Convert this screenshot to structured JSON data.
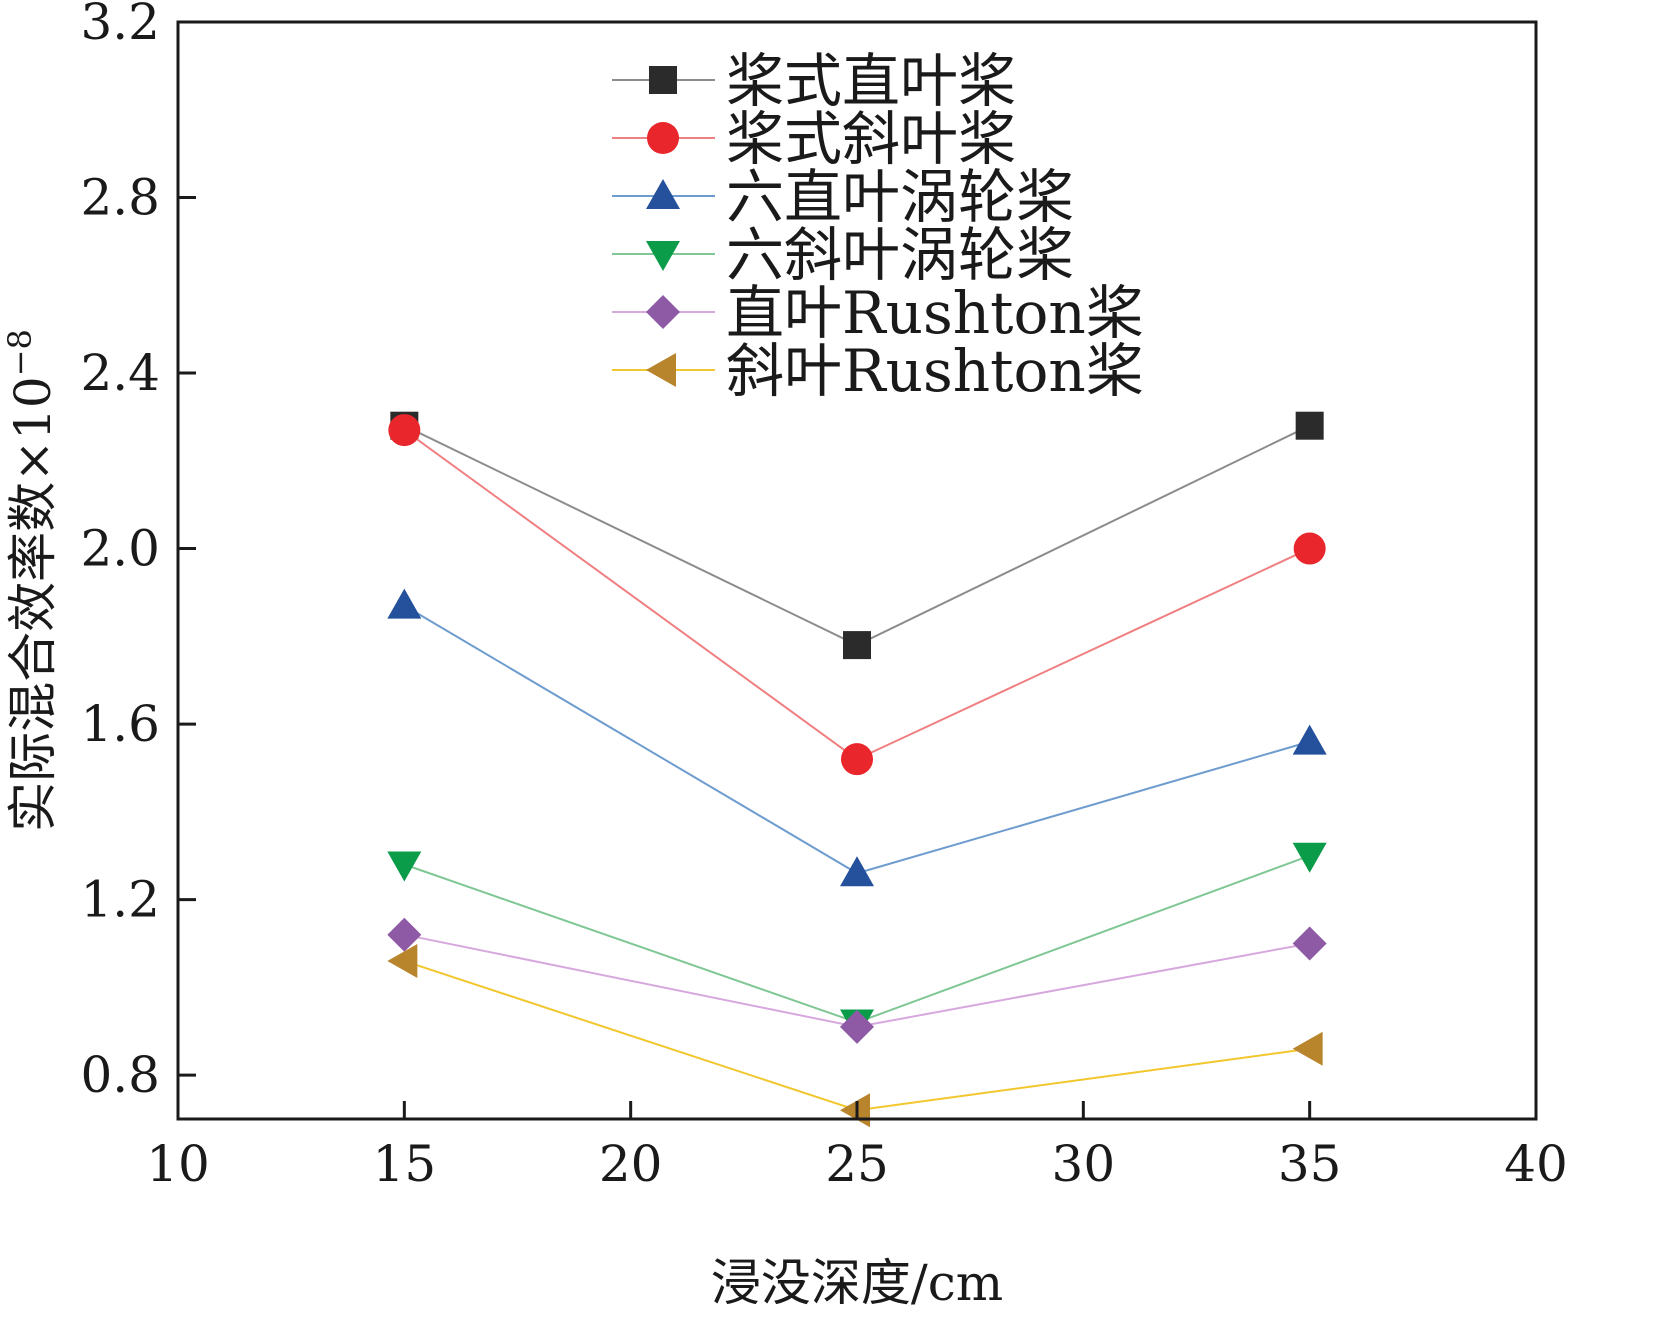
{
  "chart_data": {
    "type": "line",
    "xlabel": "浸没深度/cm",
    "ylabel": "实际混合效率数×10",
    "ylabel_exponent": "−8",
    "xlim": [
      10,
      40
    ],
    "ylim": [
      0.7,
      3.2
    ],
    "xticks": [
      10,
      15,
      20,
      25,
      30,
      35,
      40
    ],
    "xtick_labels": [
      "10",
      "15",
      "20",
      "25",
      "30",
      "35",
      "40"
    ],
    "yticks": [
      0.8,
      1.2,
      1.6,
      2.0,
      2.4,
      2.8,
      3.2
    ],
    "ytick_labels": [
      "0.8",
      "1.2",
      "1.6",
      "2.0",
      "2.4",
      "2.8",
      "3.2"
    ],
    "grid": false,
    "legend_position": "top-center",
    "x": [
      15,
      25,
      35
    ],
    "series": [
      {
        "name": "桨式直叶桨",
        "values": [
          2.28,
          1.78,
          2.28
        ],
        "color": "#2b2b2b",
        "line_color": "#8c8c8c",
        "marker": "square"
      },
      {
        "name": "桨式斜叶桨",
        "values": [
          2.27,
          1.52,
          2.0
        ],
        "color": "#e8262b",
        "line_color": "#f07f82",
        "marker": "circle"
      },
      {
        "name": "六直叶涡轮桨",
        "values": [
          1.87,
          1.26,
          1.56
        ],
        "color": "#24509c",
        "line_color": "#6e9ccf",
        "marker": "triangle-up"
      },
      {
        "name": "六斜叶涡轮桨",
        "values": [
          1.28,
          0.92,
          1.3
        ],
        "color": "#0a9c48",
        "line_color": "#7fc794",
        "marker": "triangle-down"
      },
      {
        "name": "直叶Rushton桨",
        "values": [
          1.12,
          0.91,
          1.1
        ],
        "color": "#8e5aa6",
        "line_color": "#d7a8de",
        "marker": "diamond"
      },
      {
        "name": "斜叶Rushton桨",
        "values": [
          1.06,
          0.72,
          0.86
        ],
        "color": "#b8842c",
        "line_color": "#f2c72e",
        "marker": "triangle-left"
      }
    ]
  }
}
